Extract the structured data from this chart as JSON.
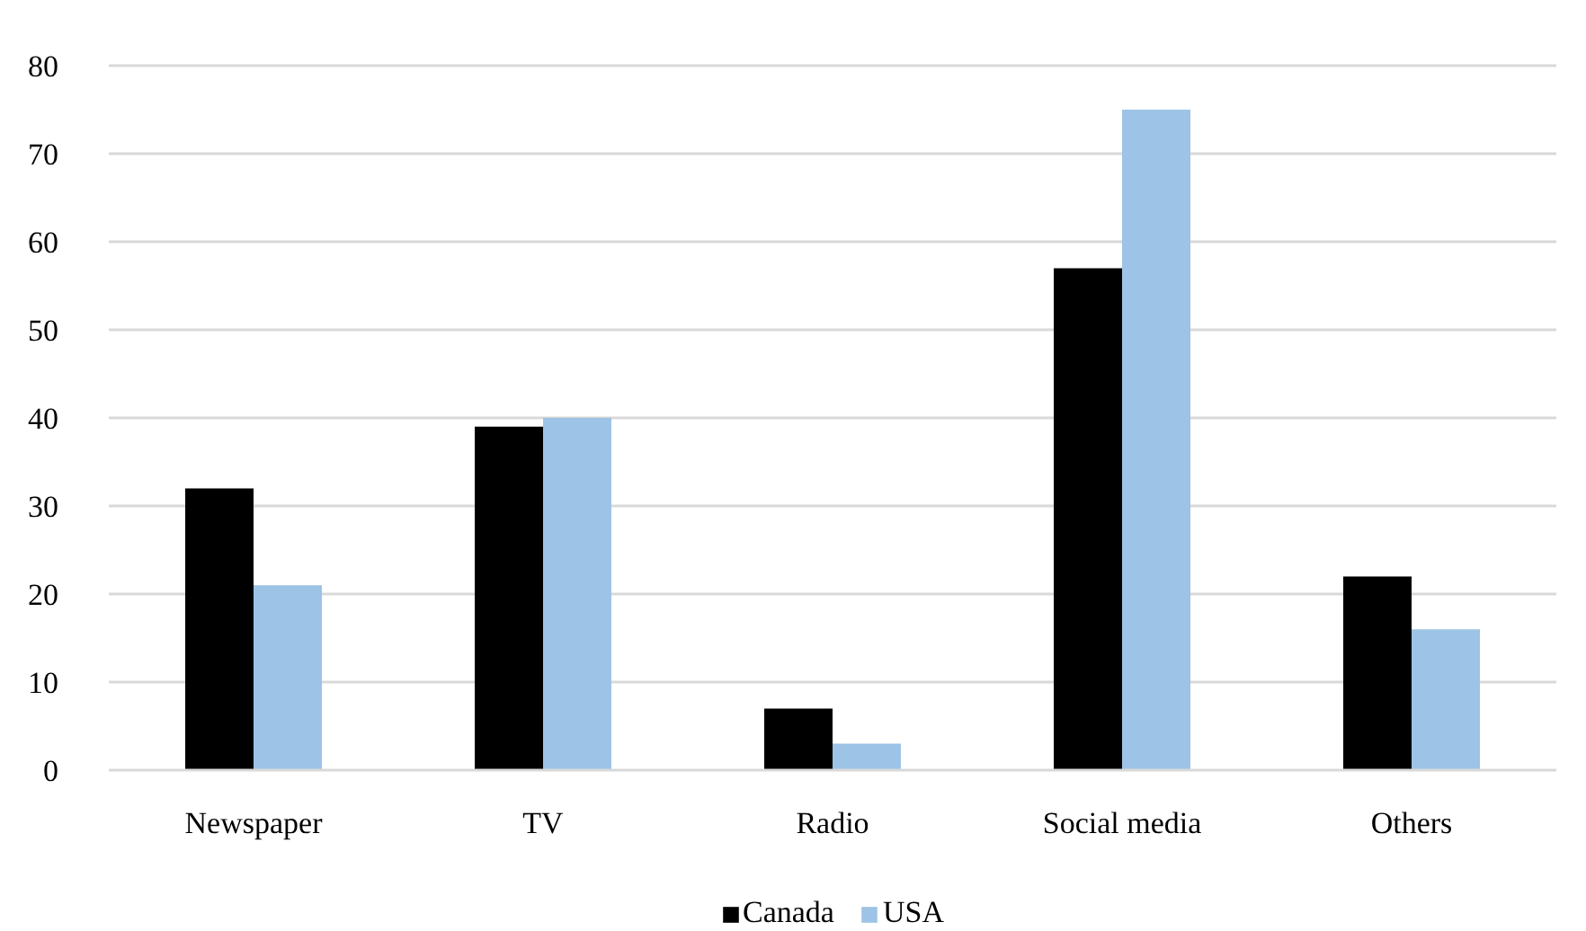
{
  "chart_data": {
    "type": "bar",
    "categories": [
      "Newspaper",
      "TV",
      "Radio",
      "Social media",
      "Others"
    ],
    "series": [
      {
        "name": "Canada",
        "color": "#000000",
        "values": [
          32,
          39,
          7,
          57,
          22
        ]
      },
      {
        "name": "USA",
        "color": "#9dc3e6",
        "values": [
          21,
          40,
          3,
          75,
          16
        ]
      }
    ],
    "ylim": [
      0,
      80
    ],
    "yticks": [
      0,
      10,
      20,
      30,
      40,
      50,
      60,
      70,
      80
    ],
    "grid": "y",
    "legend": "bottom"
  }
}
